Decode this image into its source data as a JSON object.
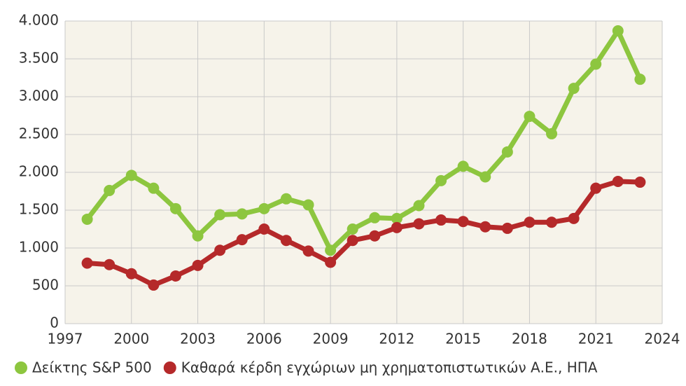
{
  "chart_data": {
    "type": "line",
    "x": [
      1998,
      1999,
      2000,
      2001,
      2002,
      2003,
      2004,
      2005,
      2006,
      2007,
      2008,
      2009,
      2010,
      2011,
      2012,
      2013,
      2014,
      2015,
      2016,
      2017,
      2018,
      2019,
      2020,
      2021,
      2022,
      2023
    ],
    "series": [
      {
        "name": "Δείκτης S&P 500",
        "color": "#8dc63f",
        "values": [
          1380,
          1760,
          1960,
          1790,
          1520,
          1160,
          1440,
          1450,
          1520,
          1650,
          1570,
          970,
          1250,
          1400,
          1390,
          1560,
          1890,
          2080,
          1940,
          2270,
          2740,
          2510,
          3110,
          3430,
          3870,
          3230
        ]
      },
      {
        "name": "Καθαρά κέρδη εγχώριων μη χρηματοπιστωτικών Α.Ε., ΗΠΑ",
        "color": "#b5292a",
        "values": [
          800,
          780,
          660,
          510,
          630,
          770,
          970,
          1110,
          1250,
          1100,
          960,
          810,
          1100,
          1160,
          1270,
          1320,
          1370,
          1350,
          1280,
          1260,
          1340,
          1340,
          1390,
          1790,
          1880,
          1870
        ]
      }
    ],
    "xlim": [
      1997,
      2024
    ],
    "xticks": [
      1997,
      2000,
      2003,
      2006,
      2009,
      2012,
      2015,
      2018,
      2021,
      2024
    ],
    "ylim": [
      0,
      4000
    ],
    "yticks": [
      0,
      500,
      {
        "value": 1000,
        "label": "1.000"
      },
      {
        "value": 1500,
        "label": "1.500"
      },
      {
        "value": 2000,
        "label": "2.000"
      },
      {
        "value": 2500,
        "label": "2.500"
      },
      {
        "value": 3000,
        "label": "3.000"
      },
      {
        "value": 3500,
        "label": "3.500"
      },
      {
        "value": 4000,
        "label": "4.000"
      }
    ],
    "grid": true
  }
}
